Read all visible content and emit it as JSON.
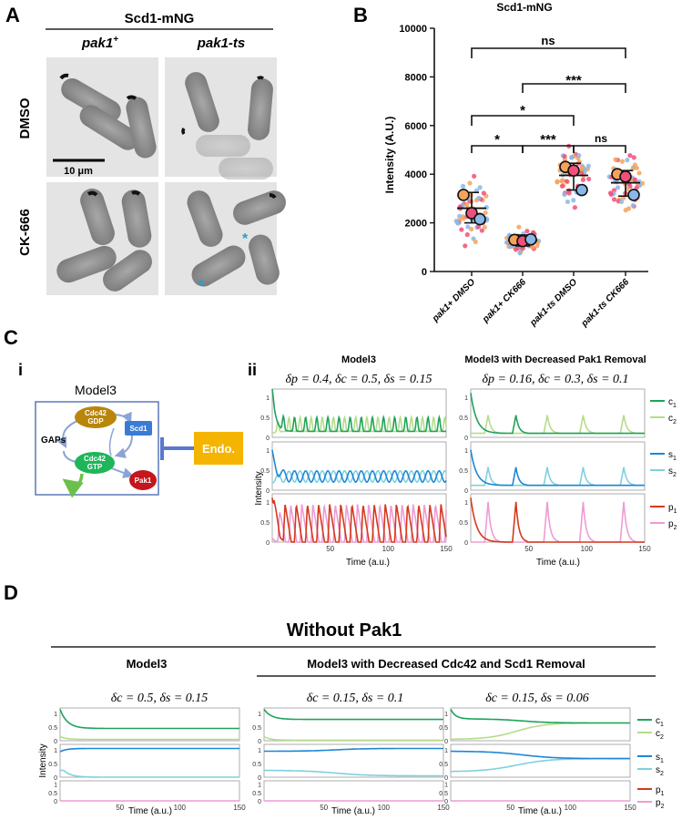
{
  "panelA": {
    "letter": "A",
    "header": "Scd1-mNG",
    "col1": "pak1",
    "col1_sup": "+",
    "col2": "pak1-ts",
    "row1": "DMSO",
    "row2": "CK-666",
    "scalebar": "10 μm",
    "asterisk": "*"
  },
  "panelB": {
    "letter": "B",
    "ns1": "ns",
    "ns2": "ns",
    "sig_top": "***",
    "sig_mid": "*",
    "sig_left": "*",
    "sig_right": "***"
  },
  "panelC": {
    "letter": "C",
    "sub_i": "i",
    "sub_ii": "ii",
    "model_label": "Model3",
    "gaps": "GAPs",
    "cdc42gdp_1": "Cdc42",
    "cdc42gdp_2": "GDP",
    "cdc42gtp_1": "Cdc42",
    "cdc42gtp_2": "GTP",
    "scd1": "Scd1",
    "pak1": "Pak1",
    "endo": "Endo.",
    "title_left": "Model3",
    "title_right": "Model3 with Decreased Pak1 Removal",
    "params_left": "δp = 0.4, δc = 0.5, δs = 0.15",
    "params_right": "δp = 0.16, δc = 0.3, δs = 0.1",
    "ylabel": "Intensity",
    "xlabel": "Time (a.u.)"
  },
  "panelD": {
    "letter": "D",
    "title": "Without Pak1",
    "col1_title": "Model3",
    "col23_title": "Model3 with Decreased Cdc42 and Scd1 Removal",
    "params1": "δc = 0.5, δs = 0.15",
    "params2": "δc = 0.15, δs = 0.1",
    "params3": "δc = 0.15, δs = 0.06",
    "ylabel": "Intensity",
    "xlabel": "Time (a.u.)"
  },
  "legend": {
    "c1": "c1",
    "c2": "c2",
    "s1": "s1",
    "s2": "s2",
    "p1": "p1",
    "p2": "p2"
  },
  "colors": {
    "c1": "#1fa35a",
    "c2": "#b5dc8a",
    "s1": "#1d87d6",
    "s2": "#7fd0df",
    "p1": "#d43a1d",
    "p2": "#ee9bd4",
    "gdp": "#b8860b",
    "gtp": "#1fb55a",
    "scd1": "#3a7bd5",
    "pak1": "#c4161c",
    "endo": "#f5b400",
    "arrow": "#8aa4d6"
  },
  "chart_data": [
    {
      "type": "scatter",
      "title": "Scd1-mNG",
      "ylabel": "Intensity (A.U.)",
      "ylim": [
        0,
        10000
      ],
      "yticks": [
        "0",
        "2000",
        "4000",
        "6000",
        "8000",
        "10000"
      ],
      "categories": [
        "pak1+ DMSO",
        "pak1+ CK666",
        "pak1-ts DMSO",
        "pak1-ts CK666"
      ],
      "mean": [
        2600,
        1280,
        3950,
        3650
      ],
      "sd_low": [
        2000,
        1050,
        3350,
        3100
      ],
      "sd_high": [
        3250,
        1500,
        4450,
        4150
      ],
      "replicate_means": [
        [
          3150,
          2400,
          2150
        ],
        [
          1300,
          1250,
          1320
        ],
        [
          4300,
          4150,
          3350
        ],
        [
          4000,
          3900,
          3150
        ]
      ]
    },
    {
      "type": "line",
      "name": "C-ii Model3",
      "xlabel": "Time (a.u.)",
      "xlim": [
        0,
        150
      ],
      "xticks": [
        50,
        100,
        150
      ],
      "ylim": [
        0,
        1.2
      ],
      "rows": [
        {
          "series": [
            "c1",
            "c2"
          ],
          "kind": "osc",
          "period": 9.6,
          "base": 0.15,
          "amp": 0.35,
          "init": 1.2,
          "init2": 0.1,
          "phase2": 4.8,
          "shape": "spike"
        },
        {
          "series": [
            "s1",
            "s2"
          ],
          "kind": "osc",
          "period": 9.6,
          "base": 0.2,
          "amp": 0.28,
          "init": 1.0,
          "init2": 0.18,
          "phase2": 4.8,
          "shape": "round"
        },
        {
          "series": [
            "p1",
            "p2"
          ],
          "kind": "osc",
          "period": 9.6,
          "base": 0.0,
          "amp": 0.95,
          "init": 1.1,
          "init2": 0.05,
          "phase2": 4.8,
          "shape": "saw"
        }
      ]
    },
    {
      "type": "line",
      "name": "C-ii Model3 with Decreased Pak1 Removal",
      "xlabel": "Time (a.u.)",
      "xlim": [
        0,
        150
      ],
      "ylim": [
        0,
        1.2
      ],
      "rows": [
        {
          "series": [
            "c1",
            "c2"
          ],
          "kind": "peaks",
          "peaks1": [
            2,
            39
          ],
          "peaks2": [
            15,
            66,
            97,
            132
          ],
          "base": 0.1,
          "amp": 0.45,
          "init": 1.1
        },
        {
          "series": [
            "s1",
            "s2"
          ],
          "kind": "peaks",
          "peaks1": [
            2,
            39
          ],
          "peaks2": [
            15,
            66,
            97,
            132
          ],
          "base": 0.12,
          "amp": 0.45,
          "init": 1.0
        },
        {
          "series": [
            "p1",
            "p2"
          ],
          "kind": "peaks",
          "peaks1": [
            2,
            39
          ],
          "peaks2": [
            15,
            66,
            97,
            132
          ],
          "base": 0.0,
          "amp": 1.0,
          "init": 1.1
        }
      ]
    },
    {
      "type": "line",
      "name": "D Without Pak1",
      "xlabel": "Time (a.u.)",
      "xlim": [
        0,
        150
      ],
      "xticks": [
        50,
        100,
        150
      ],
      "ylim": [
        0,
        1.2
      ],
      "columns": [
        {
          "c1_end": 0.45,
          "c2_end": 0.05,
          "s1_end": 1.05,
          "s2_end": 0.0,
          "conv": false
        },
        {
          "c1_end": 0.78,
          "c2_end": 0.02,
          "s1_end": 1.05,
          "s2_end": 0.05,
          "conv": false
        },
        {
          "c1_end": 0.65,
          "c2_end": 0.65,
          "s1_end": 0.68,
          "s2_end": 0.68,
          "conv": true
        }
      ]
    }
  ]
}
